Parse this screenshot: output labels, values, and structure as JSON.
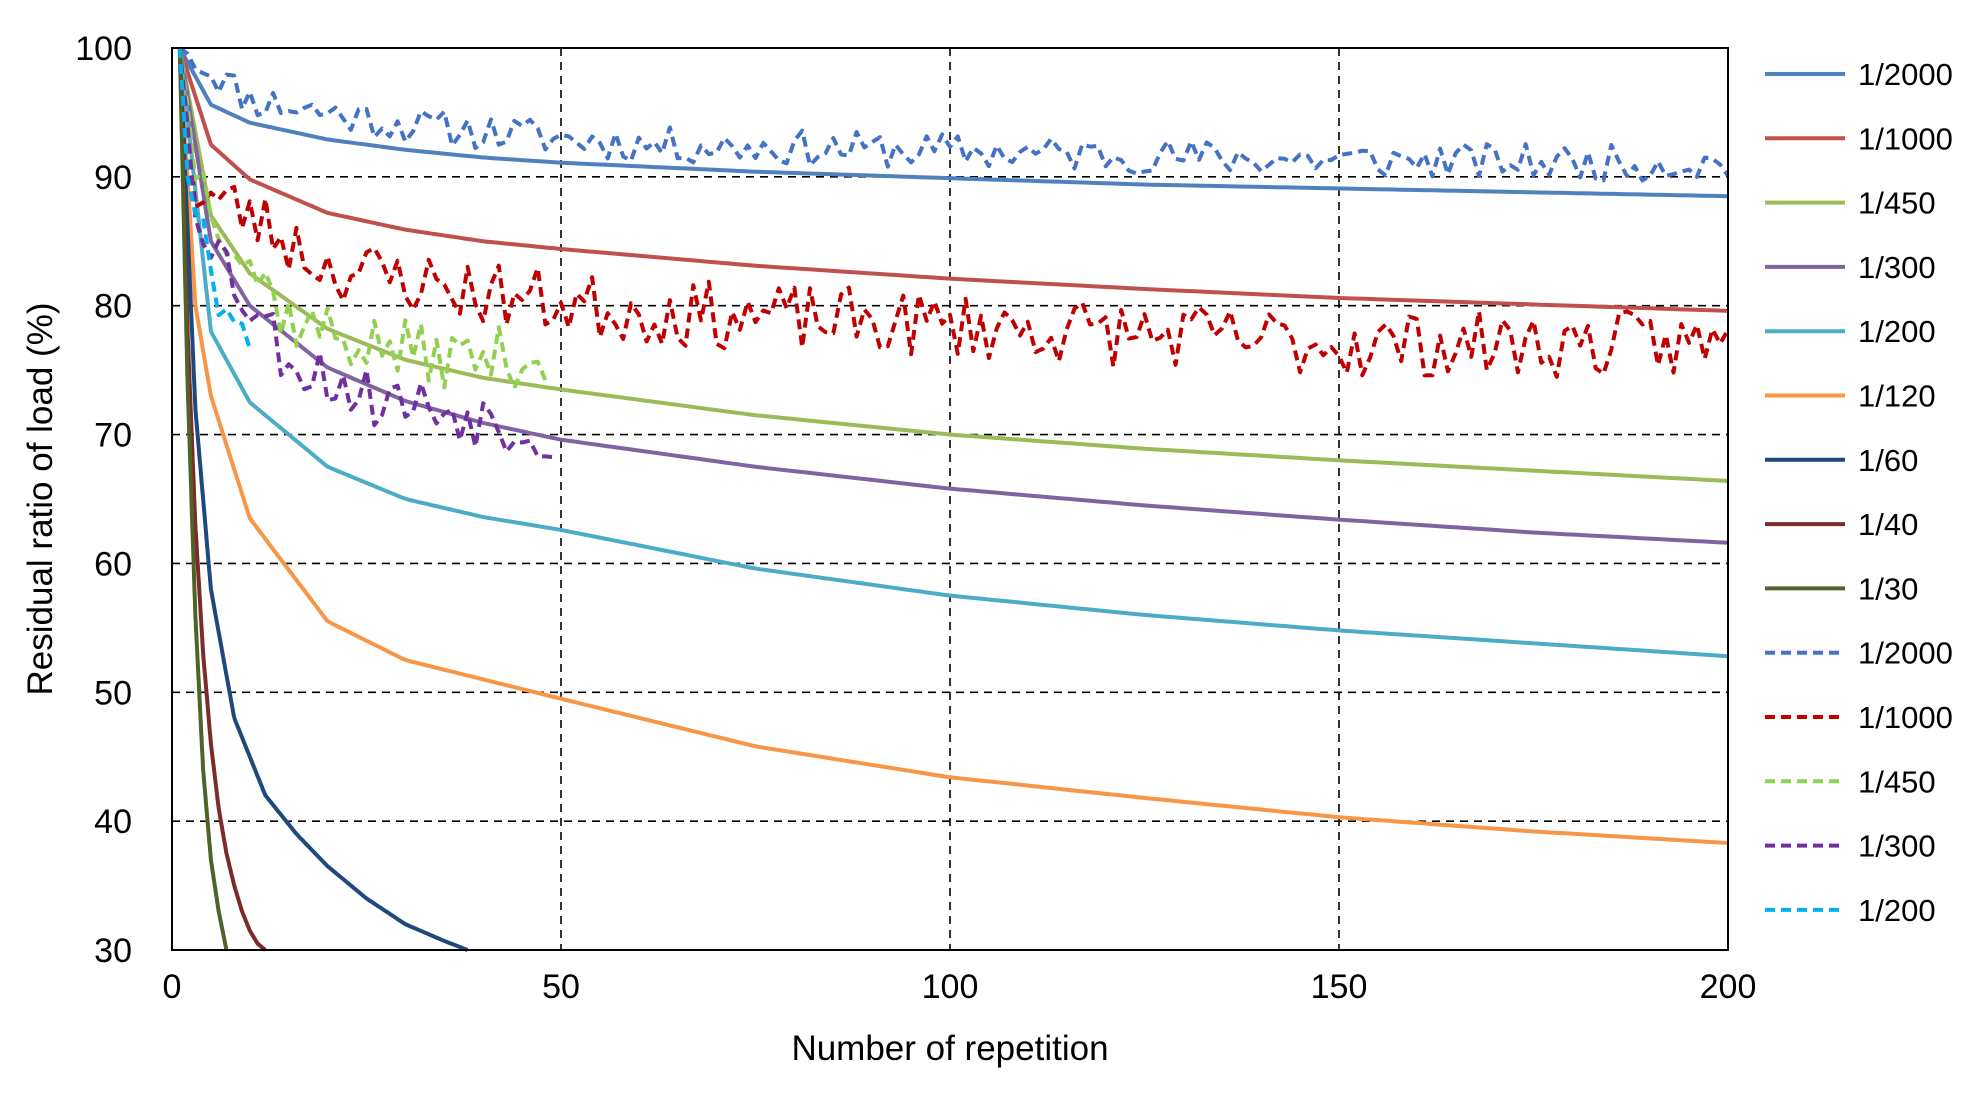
{
  "chart_data": {
    "type": "line",
    "title": "",
    "xlabel": "Number of repetition",
    "ylabel": "Residual ratio of load (%)",
    "xlim": [
      0,
      200
    ],
    "ylim": [
      30,
      100
    ],
    "x_ticks": [
      0,
      50,
      100,
      150,
      200
    ],
    "y_ticks": [
      30,
      40,
      50,
      60,
      70,
      80,
      90,
      100
    ],
    "grid": "dashed",
    "legend_position": "right",
    "series": [
      {
        "name": "1/2000",
        "style": "solid",
        "color": "#4F81BD",
        "kind": "model",
        "x_end": 200,
        "points": [
          [
            1,
            100
          ],
          [
            5,
            95.6
          ],
          [
            10,
            94.2
          ],
          [
            20,
            92.9
          ],
          [
            30,
            92.1
          ],
          [
            40,
            91.5
          ],
          [
            50,
            91.1
          ],
          [
            75,
            90.4
          ],
          [
            100,
            89.9
          ],
          [
            125,
            89.4
          ],
          [
            150,
            89.1
          ],
          [
            175,
            88.8
          ],
          [
            200,
            88.5
          ]
        ]
      },
      {
        "name": "1/1000",
        "style": "solid",
        "color": "#C0504D",
        "kind": "model",
        "x_end": 200,
        "points": [
          [
            1,
            100
          ],
          [
            5,
            92.5
          ],
          [
            10,
            89.8
          ],
          [
            20,
            87.2
          ],
          [
            30,
            85.9
          ],
          [
            40,
            85.0
          ],
          [
            50,
            84.4
          ],
          [
            75,
            83.1
          ],
          [
            100,
            82.1
          ],
          [
            125,
            81.3
          ],
          [
            150,
            80.6
          ],
          [
            175,
            80.1
          ],
          [
            200,
            79.6
          ]
        ]
      },
      {
        "name": "1/450",
        "style": "solid",
        "color": "#9BBB59",
        "kind": "model",
        "x_end": 200,
        "points": [
          [
            1,
            100
          ],
          [
            5,
            87
          ],
          [
            10,
            82.5
          ],
          [
            20,
            78.2
          ],
          [
            30,
            75.8
          ],
          [
            40,
            74.4
          ],
          [
            50,
            73.5
          ],
          [
            75,
            71.5
          ],
          [
            100,
            70.0
          ],
          [
            125,
            68.9
          ],
          [
            150,
            68.0
          ],
          [
            175,
            67.2
          ],
          [
            200,
            66.4
          ]
        ]
      },
      {
        "name": "1/300",
        "style": "solid",
        "color": "#8064A2",
        "kind": "model",
        "x_end": 200,
        "points": [
          [
            1,
            100
          ],
          [
            5,
            85
          ],
          [
            10,
            80
          ],
          [
            20,
            75.2
          ],
          [
            30,
            72.6
          ],
          [
            40,
            70.9
          ],
          [
            50,
            69.6
          ],
          [
            75,
            67.5
          ],
          [
            100,
            65.8
          ],
          [
            125,
            64.5
          ],
          [
            150,
            63.4
          ],
          [
            175,
            62.4
          ],
          [
            200,
            61.6
          ]
        ]
      },
      {
        "name": "1/200",
        "style": "solid",
        "color": "#4BACC6",
        "kind": "model",
        "x_end": 200,
        "points": [
          [
            1,
            100
          ],
          [
            5,
            78
          ],
          [
            10,
            72.5
          ],
          [
            20,
            67.5
          ],
          [
            30,
            65.0
          ],
          [
            40,
            63.6
          ],
          [
            50,
            62.6
          ],
          [
            75,
            59.6
          ],
          [
            100,
            57.5
          ],
          [
            125,
            56.0
          ],
          [
            150,
            54.8
          ],
          [
            175,
            53.8
          ],
          [
            200,
            52.8
          ]
        ]
      },
      {
        "name": "1/120",
        "style": "solid",
        "color": "#F79646",
        "kind": "model",
        "x_end": 200,
        "points": [
          [
            1,
            100
          ],
          [
            3,
            80
          ],
          [
            5,
            73
          ],
          [
            10,
            63.5
          ],
          [
            20,
            55.5
          ],
          [
            30,
            52.5
          ],
          [
            40,
            51.0
          ],
          [
            50,
            49.5
          ],
          [
            75,
            45.8
          ],
          [
            100,
            43.4
          ],
          [
            125,
            41.8
          ],
          [
            150,
            40.3
          ],
          [
            175,
            39.2
          ],
          [
            200,
            38.3
          ]
        ]
      },
      {
        "name": "1/60",
        "style": "solid",
        "color": "#1F497D",
        "kind": "model",
        "x_end": 38,
        "points": [
          [
            1,
            100
          ],
          [
            3,
            72
          ],
          [
            5,
            58
          ],
          [
            8,
            48
          ],
          [
            12,
            42
          ],
          [
            16,
            39
          ],
          [
            20,
            36.5
          ],
          [
            25,
            34
          ],
          [
            30,
            32
          ],
          [
            35,
            30.7
          ],
          [
            38,
            30
          ]
        ]
      },
      {
        "name": "1/40",
        "style": "solid",
        "color": "#7B2C2A",
        "kind": "model",
        "x_end": 12,
        "points": [
          [
            1,
            100
          ],
          [
            2,
            78
          ],
          [
            3,
            63
          ],
          [
            4,
            53
          ],
          [
            5,
            46
          ],
          [
            6,
            41
          ],
          [
            7,
            37.5
          ],
          [
            8,
            35
          ],
          [
            9,
            33
          ],
          [
            10,
            31.5
          ],
          [
            11,
            30.5
          ],
          [
            12,
            30
          ]
        ]
      },
      {
        "name": "1/30",
        "style": "solid",
        "color": "#4F6228",
        "kind": "model",
        "x_end": 7,
        "points": [
          [
            1,
            100
          ],
          [
            2,
            74
          ],
          [
            3,
            56
          ],
          [
            4,
            44
          ],
          [
            5,
            37
          ],
          [
            6,
            33
          ],
          [
            7,
            30
          ]
        ]
      },
      {
        "name": "1/2000",
        "style": "dashed",
        "color": "#4472C4",
        "kind": "measured",
        "x_end": 200,
        "base": [
          [
            1,
            100
          ],
          [
            10,
            96
          ],
          [
            30,
            94
          ],
          [
            60,
            92.5
          ],
          [
            100,
            92
          ],
          [
            150,
            91.3
          ],
          [
            200,
            91
          ]
        ],
        "amp": 1.4,
        "seed": 11
      },
      {
        "name": "1/1000",
        "style": "dashed",
        "color": "#C00000",
        "kind": "measured",
        "x_end": 200,
        "base": [
          [
            1,
            100
          ],
          [
            3,
            89
          ],
          [
            10,
            87
          ],
          [
            20,
            83
          ],
          [
            40,
            81
          ],
          [
            60,
            79.5
          ],
          [
            100,
            78.5
          ],
          [
            150,
            77
          ],
          [
            200,
            77
          ]
        ],
        "amp": 2.6,
        "seed": 23
      },
      {
        "name": "1/450",
        "style": "dashed",
        "color": "#92D050",
        "kind": "measured",
        "x_end": 48,
        "base": [
          [
            1,
            100
          ],
          [
            3,
            91
          ],
          [
            8,
            85
          ],
          [
            15,
            79
          ],
          [
            25,
            77
          ],
          [
            35,
            76
          ],
          [
            48,
            76
          ]
        ],
        "amp": 2.4,
        "seed": 37
      },
      {
        "name": "1/300",
        "style": "dashed",
        "color": "#7030A0",
        "kind": "measured",
        "x_end": 49,
        "base": [
          [
            1,
            100
          ],
          [
            3,
            88
          ],
          [
            8,
            82
          ],
          [
            15,
            76
          ],
          [
            25,
            73
          ],
          [
            35,
            72
          ],
          [
            49,
            70
          ]
        ],
        "amp": 2.4,
        "seed": 53
      },
      {
        "name": "1/200",
        "style": "dashed",
        "color": "#00B0F0",
        "kind": "measured",
        "x_end": 10,
        "base": [
          [
            1,
            100
          ],
          [
            2,
            90
          ],
          [
            4,
            86
          ],
          [
            6,
            80
          ],
          [
            8,
            78
          ],
          [
            10,
            76
          ]
        ],
        "amp": 1.8,
        "seed": 71
      }
    ]
  }
}
